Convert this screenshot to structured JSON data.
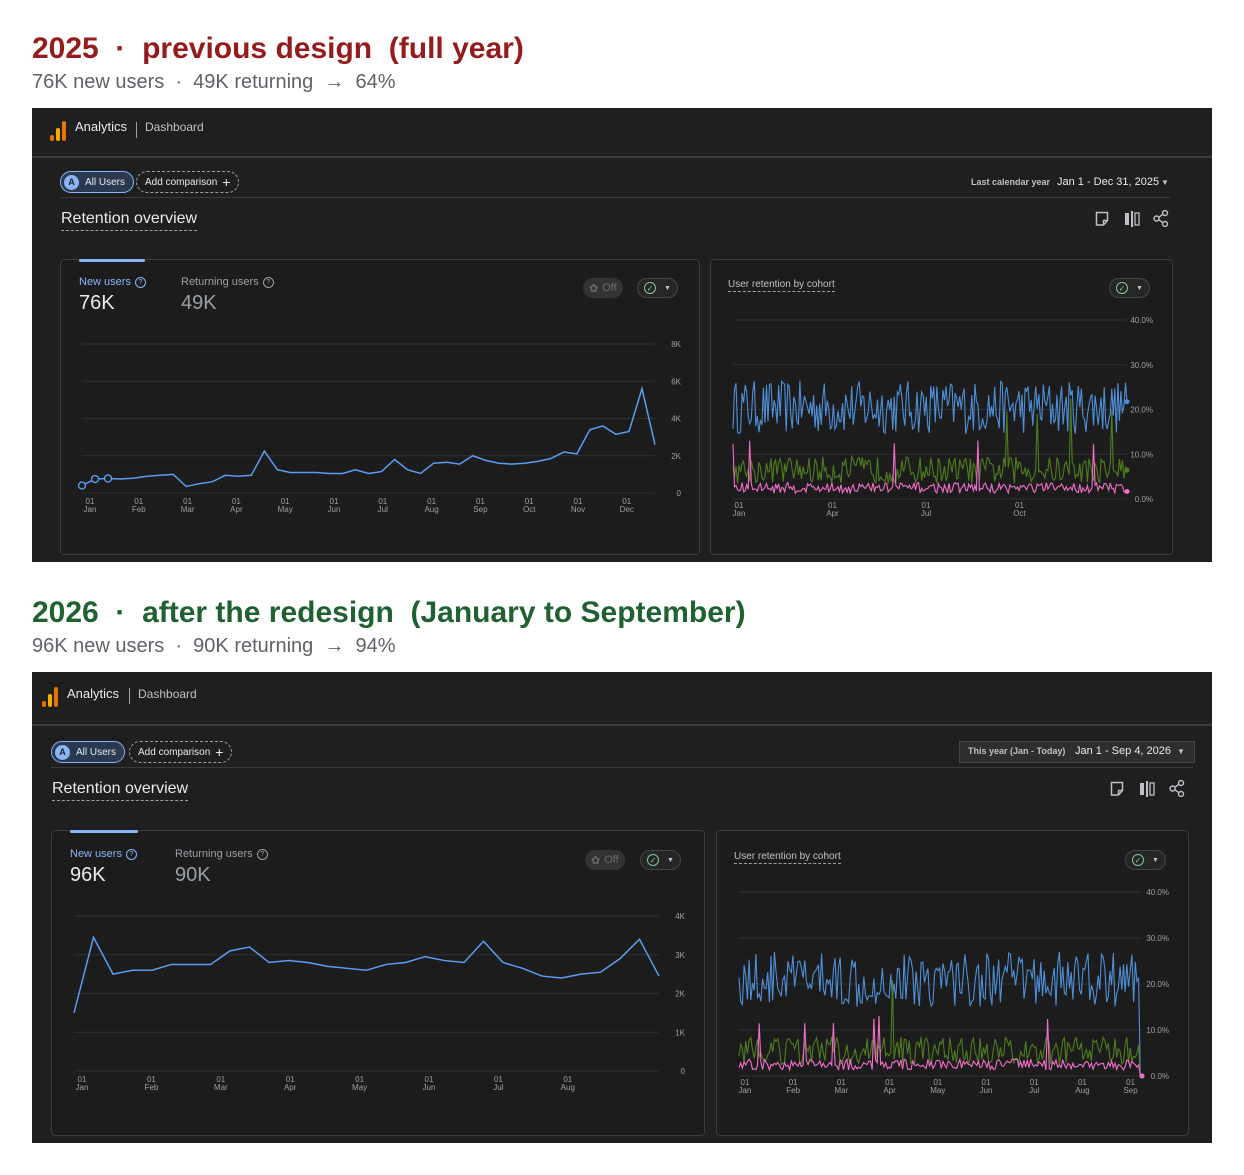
{
  "sections": [
    {
      "title": "2025  ·  previous design  (full year)",
      "title_color": "#951c1c",
      "subtitle": "76K new users  ·  49K returning  →  64%",
      "app": {
        "brand": "Analytics",
        "breadcrumb": "Dashboard",
        "segment_chip": "All Users",
        "segment_avatar": "A",
        "add_comparison": "Add comparison",
        "date_caption": "Last calendar year",
        "date_range": "Jan 1 - Dec 31, 2025",
        "overview_title": "Retention overview",
        "metrics": [
          {
            "label": "New users",
            "value": "76K",
            "active": true
          },
          {
            "label": "Returning users",
            "value": "49K",
            "active": false
          }
        ],
        "off_label": "Off",
        "cohort_title": "User retention by cohort"
      },
      "chart_data": [
        {
          "type": "line",
          "x_tick_labels": [
            [
              "01",
              "Jan"
            ],
            [
              "01",
              "Feb"
            ],
            [
              "01",
              "Mar"
            ],
            [
              "01",
              "Apr"
            ],
            [
              "01",
              "May"
            ],
            [
              "01",
              "Jun"
            ],
            [
              "01",
              "Jul"
            ],
            [
              "01",
              "Aug"
            ],
            [
              "01",
              "Sep"
            ],
            [
              "01",
              "Oct"
            ],
            [
              "01",
              "Nov"
            ],
            [
              "01",
              "Dec"
            ]
          ],
          "y_tick_labels": [
            "8K",
            "6K",
            "4K",
            "2K",
            "0"
          ],
          "ylim": [
            0,
            8000
          ],
          "series": [
            {
              "color": "#5b9cf0",
              "values": [
                400,
                750,
                780,
                750,
                800,
                900,
                950,
                1000,
                350,
                500,
                600,
                950,
                900,
                950,
                2250,
                1250,
                1100,
                1100,
                1100,
                1050,
                1050,
                1250,
                1050,
                1150,
                1800,
                1250,
                1050,
                1600,
                1650,
                1550,
                2000,
                1750,
                1600,
                1550,
                1600,
                1700,
                1850,
                2200,
                2100,
                3400,
                3600,
                3150,
                3300,
                5600,
                2600
              ]
            }
          ]
        },
        {
          "type": "line",
          "x_tick_labels": [
            [
              "01",
              "Jan"
            ],
            [
              "01",
              "Apr"
            ],
            [
              "01",
              "Jul"
            ],
            [
              "01",
              "Oct"
            ]
          ],
          "y_tick_labels": [
            "40.0%",
            "30.0%",
            "20.0%",
            "10.0%",
            "0.0%"
          ],
          "ylim": [
            0,
            40
          ],
          "series": [
            {
              "color": "#4e8fd8",
              "description": "blue cohort",
              "level": 20.5
            },
            {
              "color": "#4e7d1e",
              "description": "green cohort",
              "level": 6.5
            },
            {
              "color": "#f06ec8",
              "description": "pink cohort",
              "level": 2.5
            }
          ]
        }
      ]
    },
    {
      "title": "2026  ·  after the redesign  (January to September)",
      "title_color": "#1f6131",
      "subtitle": "96K new users  ·  90K returning  →  94%",
      "app": {
        "brand": "Analytics",
        "breadcrumb": "Dashboard",
        "segment_chip": "All Users",
        "segment_avatar": "A",
        "add_comparison": "Add comparison",
        "date_caption": "This year (Jan - Today)",
        "date_range": "Jan 1 - Sep 4, 2026",
        "overview_title": "Retention overview",
        "metrics": [
          {
            "label": "New users",
            "value": "96K",
            "active": true
          },
          {
            "label": "Returning users",
            "value": "90K",
            "active": false
          }
        ],
        "off_label": "Off",
        "cohort_title": "User retention by cohort"
      },
      "chart_data": [
        {
          "type": "line",
          "x_tick_labels": [
            [
              "01",
              "Jan"
            ],
            [
              "01",
              "Feb"
            ],
            [
              "01",
              "Mar"
            ],
            [
              "01",
              "Apr"
            ],
            [
              "01",
              "May"
            ],
            [
              "01",
              "Jun"
            ],
            [
              "01",
              "Jul"
            ],
            [
              "01",
              "Aug"
            ]
          ],
          "y_tick_labels": [
            "4K",
            "3K",
            "2K",
            "1K",
            "0"
          ],
          "ylim": [
            0,
            4000
          ],
          "series": [
            {
              "color": "#5b9cf0",
              "values": [
                1500,
                3450,
                2500,
                2600,
                2600,
                2750,
                2750,
                2750,
                3100,
                3200,
                2800,
                2850,
                2800,
                2700,
                2650,
                2600,
                2750,
                2800,
                2950,
                2850,
                2800,
                3350,
                2800,
                2650,
                2450,
                2400,
                2500,
                2550,
                2900,
                3400,
                2450
              ]
            }
          ]
        },
        {
          "type": "line",
          "x_tick_labels": [
            [
              "01",
              "Jan"
            ],
            [
              "01",
              "Feb"
            ],
            [
              "01",
              "Mar"
            ],
            [
              "01",
              "Apr"
            ],
            [
              "01",
              "May"
            ],
            [
              "01",
              "Jun"
            ],
            [
              "01",
              "Jul"
            ],
            [
              "01",
              "Aug"
            ],
            [
              "01",
              "Sep"
            ]
          ],
          "y_tick_labels": [
            "40.0%",
            "30.0%",
            "20.0%",
            "10.0%",
            "0.0%"
          ],
          "ylim": [
            0,
            40
          ],
          "series": [
            {
              "color": "#4e8fd8",
              "description": "blue cohort",
              "level": 21
            },
            {
              "color": "#4e7d1e",
              "description": "green cohort",
              "level": 5.5
            },
            {
              "color": "#f06ec8",
              "description": "pink cohort",
              "level": 2.5
            }
          ]
        }
      ]
    }
  ]
}
